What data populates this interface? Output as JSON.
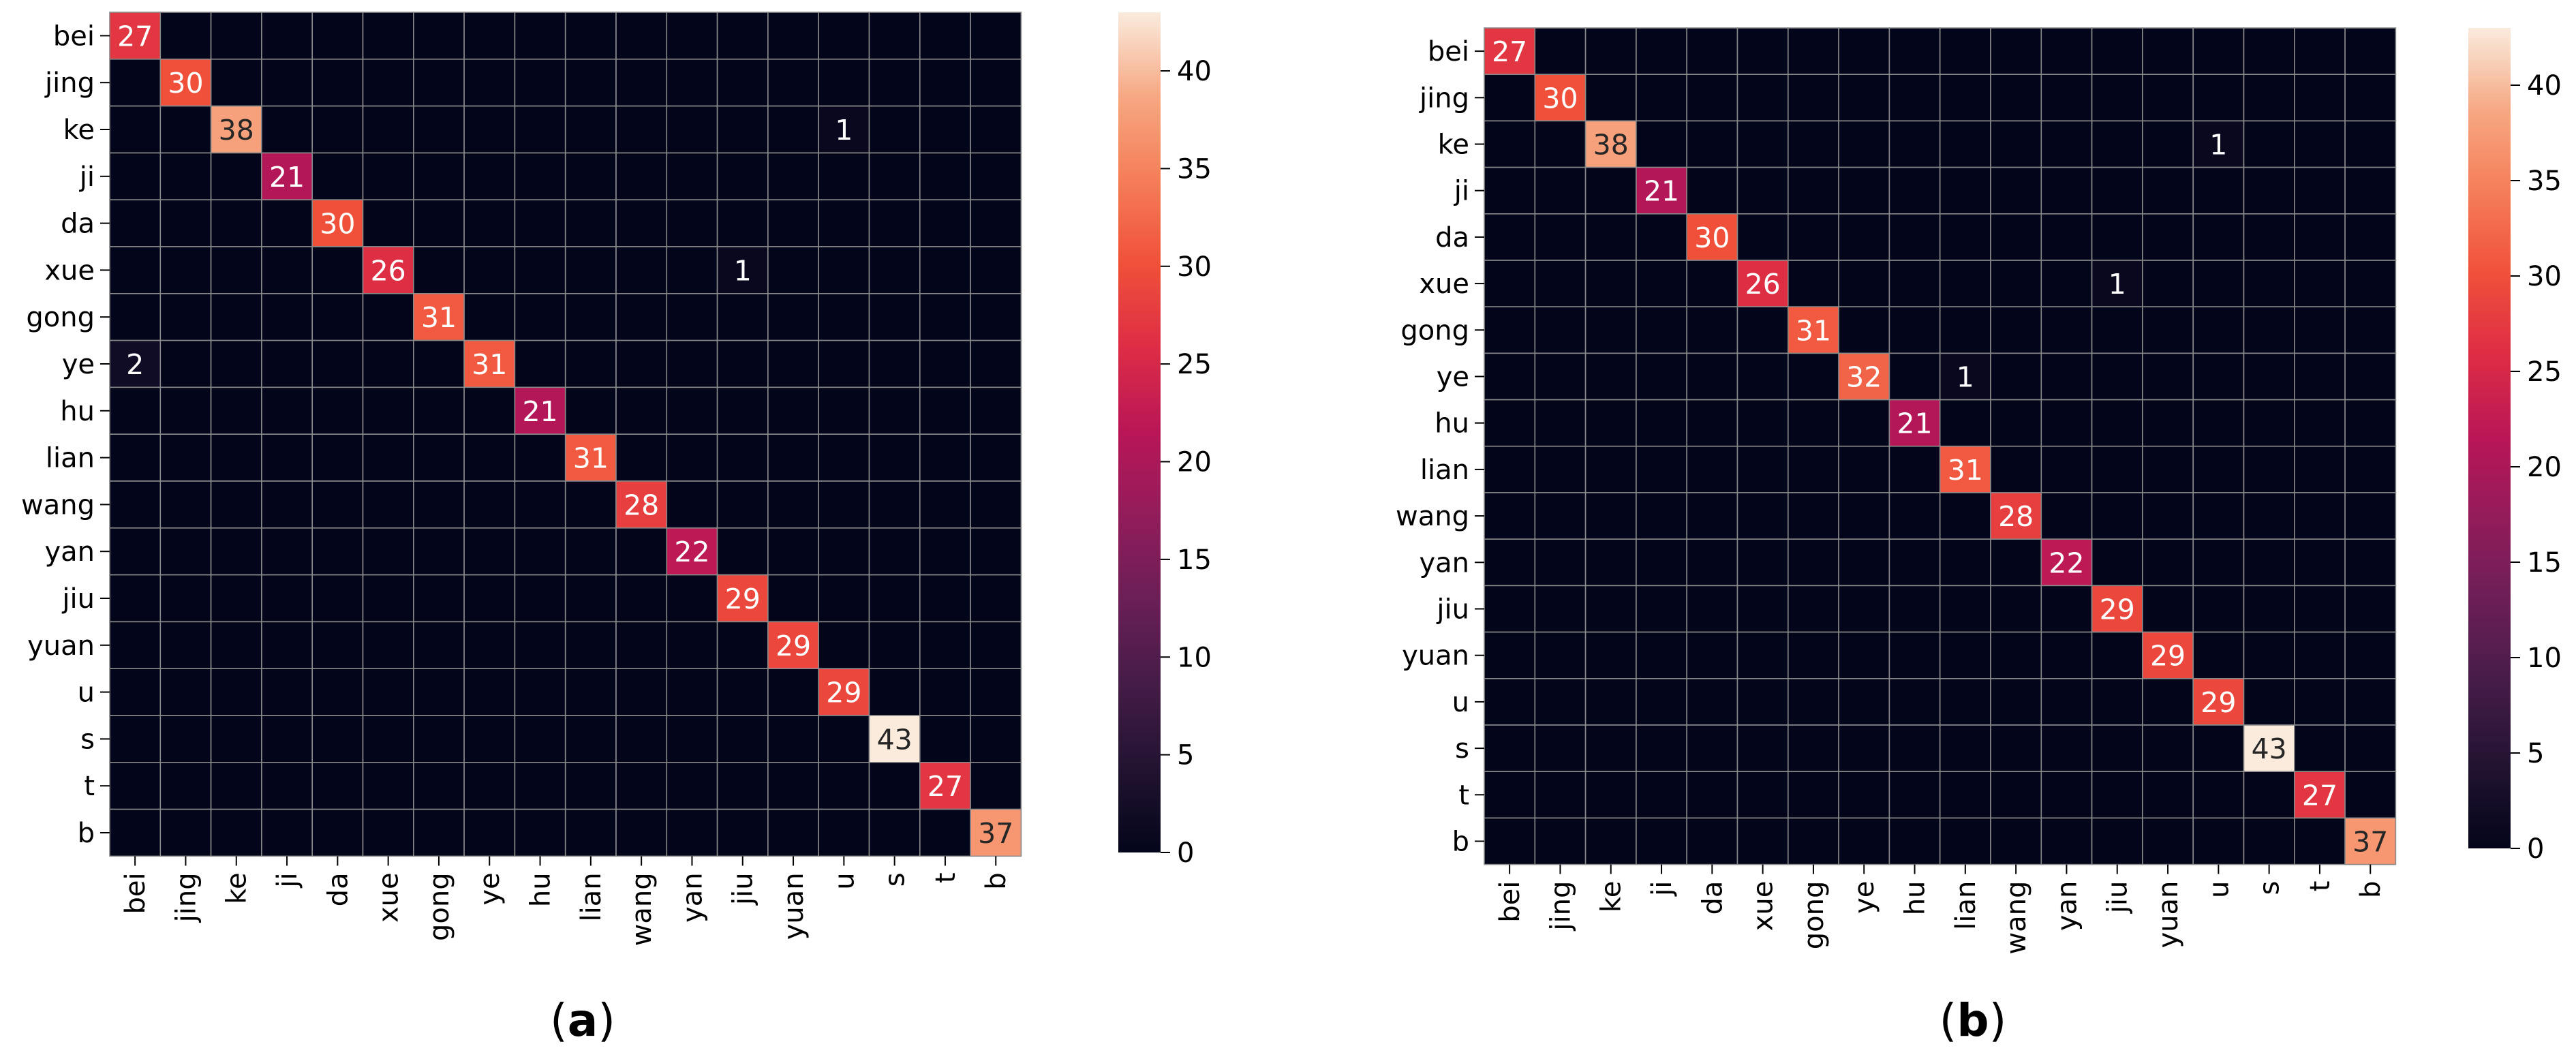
{
  "chart_data": [
    {
      "type": "heatmap",
      "panel_label": "a",
      "title": "",
      "xlabel": "",
      "ylabel": "",
      "rows": [
        "bei",
        "jing",
        "ke",
        "ji",
        "da",
        "xue",
        "gong",
        "ye",
        "hu",
        "lian",
        "wang",
        "yan",
        "jiu",
        "yuan",
        "u",
        "s",
        "t",
        "b"
      ],
      "columns": [
        "bei",
        "jing",
        "ke",
        "ji",
        "da",
        "xue",
        "gong",
        "ye",
        "hu",
        "lian",
        "wang",
        "yan",
        "jiu",
        "yuan",
        "u",
        "s",
        "t",
        "b"
      ],
      "diagonal": [
        27,
        30,
        38,
        21,
        30,
        26,
        31,
        31,
        21,
        31,
        28,
        22,
        29,
        29,
        29,
        43,
        27,
        37
      ],
      "off_diagonal": [
        {
          "row": "ke",
          "col": "u",
          "value": 1
        },
        {
          "row": "xue",
          "col": "jiu",
          "value": 1
        },
        {
          "row": "ye",
          "col": "bei",
          "value": 2
        }
      ],
      "colorbar": {
        "min": 0,
        "max": 43,
        "ticks": [
          0,
          5,
          10,
          15,
          20,
          25,
          30,
          35,
          40
        ]
      }
    },
    {
      "type": "heatmap",
      "panel_label": "b",
      "title": "",
      "xlabel": "",
      "ylabel": "",
      "rows": [
        "bei",
        "jing",
        "ke",
        "ji",
        "da",
        "xue",
        "gong",
        "ye",
        "hu",
        "lian",
        "wang",
        "yan",
        "jiu",
        "yuan",
        "u",
        "s",
        "t",
        "b"
      ],
      "columns": [
        "bei",
        "jing",
        "ke",
        "ji",
        "da",
        "xue",
        "gong",
        "ye",
        "hu",
        "lian",
        "wang",
        "yan",
        "jiu",
        "yuan",
        "u",
        "s",
        "t",
        "b"
      ],
      "diagonal": [
        27,
        30,
        38,
        21,
        30,
        26,
        31,
        32,
        21,
        31,
        28,
        22,
        29,
        29,
        29,
        43,
        27,
        37
      ],
      "off_diagonal": [
        {
          "row": "ke",
          "col": "u",
          "value": 1
        },
        {
          "row": "xue",
          "col": "jiu",
          "value": 1
        },
        {
          "row": "ye",
          "col": "lian",
          "value": 1
        }
      ],
      "colorbar": {
        "min": 0,
        "max": 43,
        "ticks": [
          0,
          5,
          10,
          15,
          20,
          25,
          30,
          35,
          40
        ]
      }
    }
  ],
  "captions": {
    "a": "(a)",
    "b": "(b)"
  }
}
